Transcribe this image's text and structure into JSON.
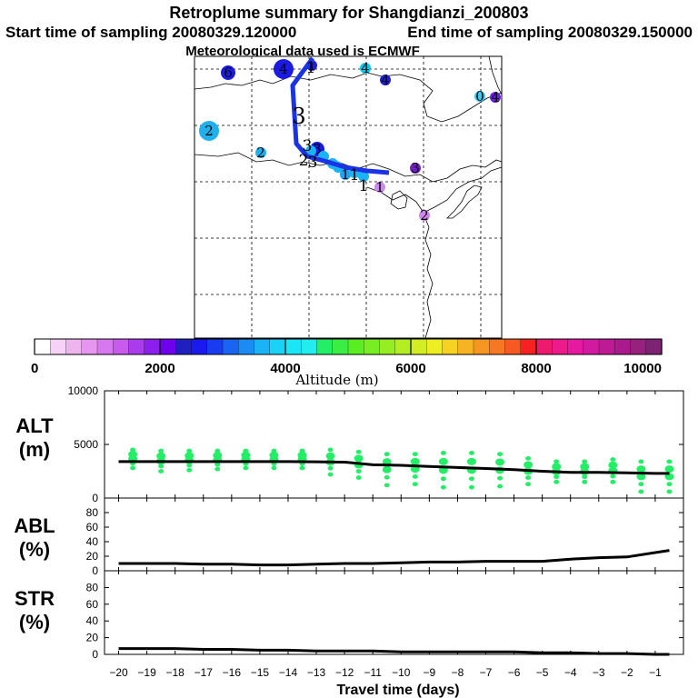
{
  "title": "Retroplume summary for Shangdianzi_200803",
  "start_label": "Start time of sampling 20080329.120000",
  "end_label": "End time of sampling 20080329.150000",
  "met_label": "Meteorological data used is ECMWF",
  "colors": {
    "track": "#1a33e6",
    "ribbon": "#22ee66",
    "line": "#000000",
    "grid": "#000000"
  },
  "map": {
    "markers": [
      {
        "label": "4",
        "color": "#1a1ae0",
        "size": "large"
      },
      {
        "label": "1",
        "color": "#2020d0",
        "size": "small"
      },
      {
        "label": "4",
        "color": "#00ccee",
        "size": "small"
      },
      {
        "label": "4",
        "color": "#2020d0",
        "size": "small"
      },
      {
        "label": "0",
        "color": "#40c8f0",
        "size": "small"
      },
      {
        "label": "4",
        "color": "#6a20d8",
        "size": "small"
      },
      {
        "label": "6",
        "color": "#1a1ae0",
        "size": "medium"
      },
      {
        "label": "2",
        "color": "#20b0ee",
        "size": "large"
      },
      {
        "label": "2",
        "color": "#20b0ee",
        "size": "small"
      },
      {
        "label": "3",
        "color": "#1a1ae0",
        "size": "medium"
      },
      {
        "label": "3",
        "color": "#7020c0",
        "size": "small"
      },
      {
        "label": "1",
        "color": "#20a0ee",
        "size": "small"
      },
      {
        "label": "1",
        "color": "#cc88ee",
        "size": "small"
      },
      {
        "label": "2",
        "color": "#cc88ee",
        "size": "small"
      }
    ],
    "track_labels": [
      "1",
      "3",
      "3",
      "2",
      "3",
      "1",
      "1"
    ]
  },
  "colorbar": {
    "axis_label": "Altitude (m)",
    "ticks": [
      "0",
      "2000",
      "4000",
      "6000",
      "8000",
      "10000"
    ],
    "colors": [
      "#ffffff",
      "#f6d2f6",
      "#eeb4ee",
      "#e696ee",
      "#d878ee",
      "#c85aee",
      "#aa3cee",
      "#8c1eee",
      "#6e00ee",
      "#2020c0",
      "#1a1aee",
      "#1a3cf0",
      "#1a64f2",
      "#1a8cf4",
      "#1ab4f6",
      "#1ad2f6",
      "#1ae6f6",
      "#22ecf0",
      "#22ee66",
      "#3cee44",
      "#5aee22",
      "#78ee22",
      "#96ee22",
      "#b4ee22",
      "#d2ee22",
      "#eeee22",
      "#f6d222",
      "#f6b422",
      "#f69622",
      "#f67822",
      "#f65a22",
      "#f62222",
      "#ee1a6e",
      "#ee1a8c",
      "#e61aa0",
      "#d21aa0",
      "#be1a96",
      "#aa1a8c",
      "#96227e",
      "#7e2273"
    ]
  },
  "chart_data": [
    {
      "type": "line",
      "panel": "ALT",
      "ylabel_line1": "ALT",
      "ylabel_line2": "(m)",
      "ylim": [
        0,
        10000
      ],
      "yticks": [
        "0",
        "5000",
        "10000"
      ],
      "x": [
        -20,
        -19,
        -18,
        -17,
        -16,
        -15,
        -14,
        -13,
        -12,
        -11,
        -10,
        -9,
        -8,
        -7,
        -6,
        -5,
        -4,
        -3,
        -2,
        -1,
        -0.5
      ],
      "values": [
        3400,
        3400,
        3400,
        3400,
        3400,
        3400,
        3400,
        3380,
        3350,
        3100,
        3050,
        2950,
        2850,
        2750,
        2650,
        2500,
        2400,
        2400,
        2350,
        2300,
        2300
      ],
      "spread_x": [
        -19.5,
        -18.5,
        -17.5,
        -16.5,
        -15.5,
        -14.5,
        -13.5,
        -12.5,
        -11.5,
        -10.5,
        -9.5,
        -8.5,
        -7.5,
        -6.5,
        -5.5,
        -4.5,
        -3.5,
        -2.5,
        -1.5,
        -0.5
      ],
      "spread_low": [
        2800,
        2500,
        2600,
        2700,
        2800,
        2800,
        2800,
        2200,
        1900,
        1200,
        1300,
        1000,
        1000,
        1100,
        1300,
        1500,
        1500,
        1500,
        600,
        600
      ],
      "spread_high": [
        4500,
        4400,
        4400,
        4400,
        4400,
        4400,
        4400,
        4500,
        4300,
        4100,
        4100,
        4200,
        4200,
        4100,
        3700,
        3400,
        3400,
        3600,
        3400,
        3400
      ]
    },
    {
      "type": "line",
      "panel": "ABL",
      "ylabel_line1": "ABL",
      "ylabel_line2": "(%)",
      "ylim": [
        0,
        100
      ],
      "yticks": [
        "0",
        "20",
        "40",
        "60",
        "80"
      ],
      "x": [
        -20,
        -19,
        -18,
        -17,
        -16,
        -15,
        -14,
        -13,
        -12,
        -11,
        -10,
        -9,
        -8,
        -7,
        -6,
        -5,
        -4,
        -3,
        -2,
        -1,
        -0.5
      ],
      "values": [
        10,
        10,
        10,
        9,
        9,
        8,
        8,
        9,
        10,
        10,
        11,
        12,
        12,
        13,
        13,
        13,
        16,
        18,
        19,
        25,
        28
      ]
    },
    {
      "type": "line",
      "panel": "STR",
      "ylabel_line1": "STR",
      "ylabel_line2": "(%)",
      "ylim": [
        0,
        100
      ],
      "yticks": [
        "0",
        "20",
        "40",
        "60",
        "80"
      ],
      "x": [
        -20,
        -19,
        -18,
        -17,
        -16,
        -15,
        -14,
        -13,
        -12,
        -11,
        -10,
        -9,
        -8,
        -7,
        -6,
        -5,
        -4,
        -3,
        -2,
        -1,
        -0.5
      ],
      "values": [
        7,
        7,
        7,
        6,
        6,
        5,
        5,
        4,
        4,
        4,
        3,
        3,
        3,
        3,
        3,
        2,
        2,
        1,
        1,
        0,
        0
      ],
      "xlabel": "Travel time (days)",
      "xticks": [
        "-20",
        "-19",
        "-18",
        "-17",
        "-16",
        "-15",
        "-14",
        "-13",
        "-12",
        "-11",
        "-10",
        "-9",
        "-8",
        "-7",
        "-6",
        "-5",
        "-4",
        "-3",
        "-2",
        "-1"
      ]
    }
  ]
}
